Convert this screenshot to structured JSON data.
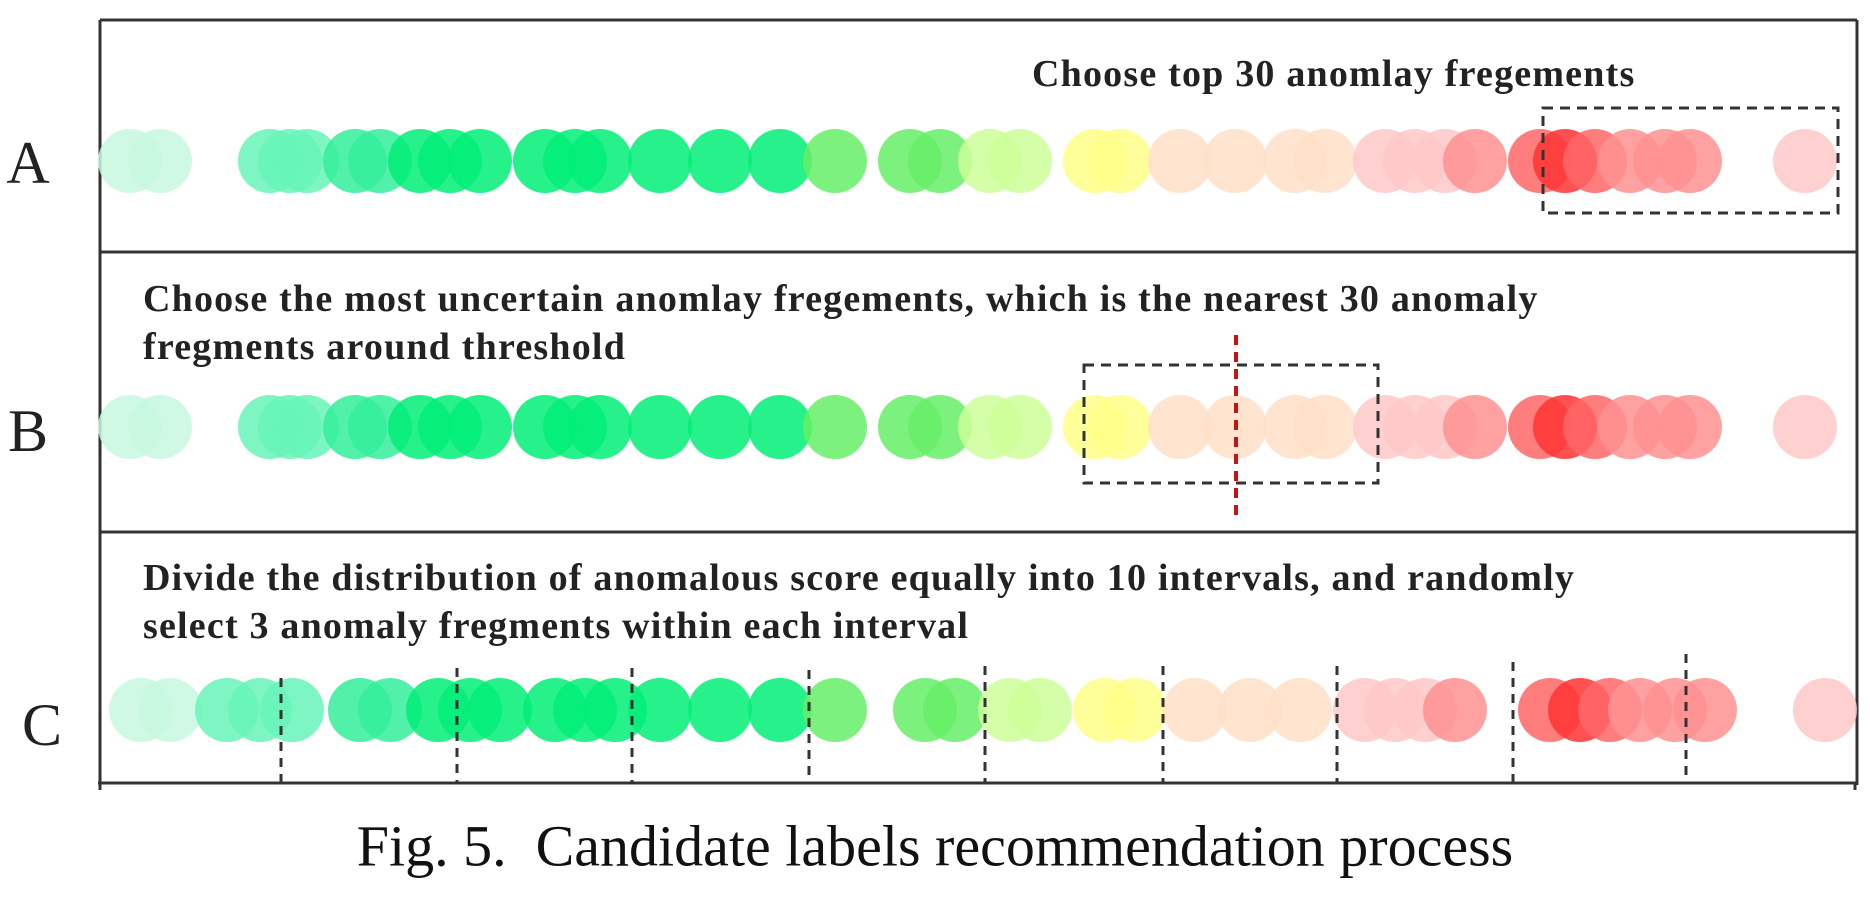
{
  "rows": [
    {
      "label": "A",
      "text": [
        "Choose top 30 anomlay fregements"
      ]
    },
    {
      "label": "B",
      "text": [
        "Choose the most uncertain anomlay fregements, which is the nearest 30 anomaly",
        "fregments around threshold"
      ]
    },
    {
      "label": "C",
      "text": [
        "Divide the distribution of anomalous score equally into 10 intervals, and randomly",
        "select 3 anomaly fregments within each interval"
      ]
    }
  ],
  "caption": "Fig. 5.  Candidate labels recommendation process",
  "colors": {
    "border": "#333333",
    "threshold": "#cc1111",
    "palette": {
      "mint": "#c8f8e0",
      "aqua": "#66f5b8",
      "teal": "#33ee9a",
      "green": "#00ee77",
      "lime": "#66ee66",
      "pale_lime": "#ccff99",
      "yellow": "#ffff88",
      "peach": "#ffe0c8",
      "pink": "#ffc8c8",
      "salmon": "#ff9090",
      "coral": "#ff6666",
      "red": "#ff3333"
    }
  },
  "fragments": {
    "row_ab": [
      "mint",
      "mint",
      "aqua",
      "aqua",
      "aqua",
      "teal",
      "teal",
      "green",
      "green",
      "green",
      "green",
      "green",
      "green",
      "green",
      "green",
      "green",
      "lime",
      "lime",
      "lime",
      "pale_lime",
      "pale_lime",
      "yellow",
      "yellow",
      "peach",
      "peach",
      "peach",
      "peach",
      "pink",
      "pink",
      "pink",
      "salmon",
      "coral",
      "red",
      "coral",
      "salmon",
      "salmon",
      "salmon",
      "pink"
    ],
    "row_c": [
      "mint",
      "mint",
      "aqua",
      "aqua",
      "aqua",
      "teal",
      "teal",
      "green",
      "green",
      "green",
      "green",
      "green",
      "green",
      "green",
      "green",
      "green",
      "lime",
      "lime",
      "lime",
      "pale_lime",
      "pale_lime",
      "yellow",
      "yellow",
      "peach",
      "peach",
      "peach",
      "pink",
      "pink",
      "pink",
      "salmon",
      "coral",
      "red",
      "coral",
      "salmon",
      "salmon",
      "salmon",
      "pink"
    ]
  }
}
